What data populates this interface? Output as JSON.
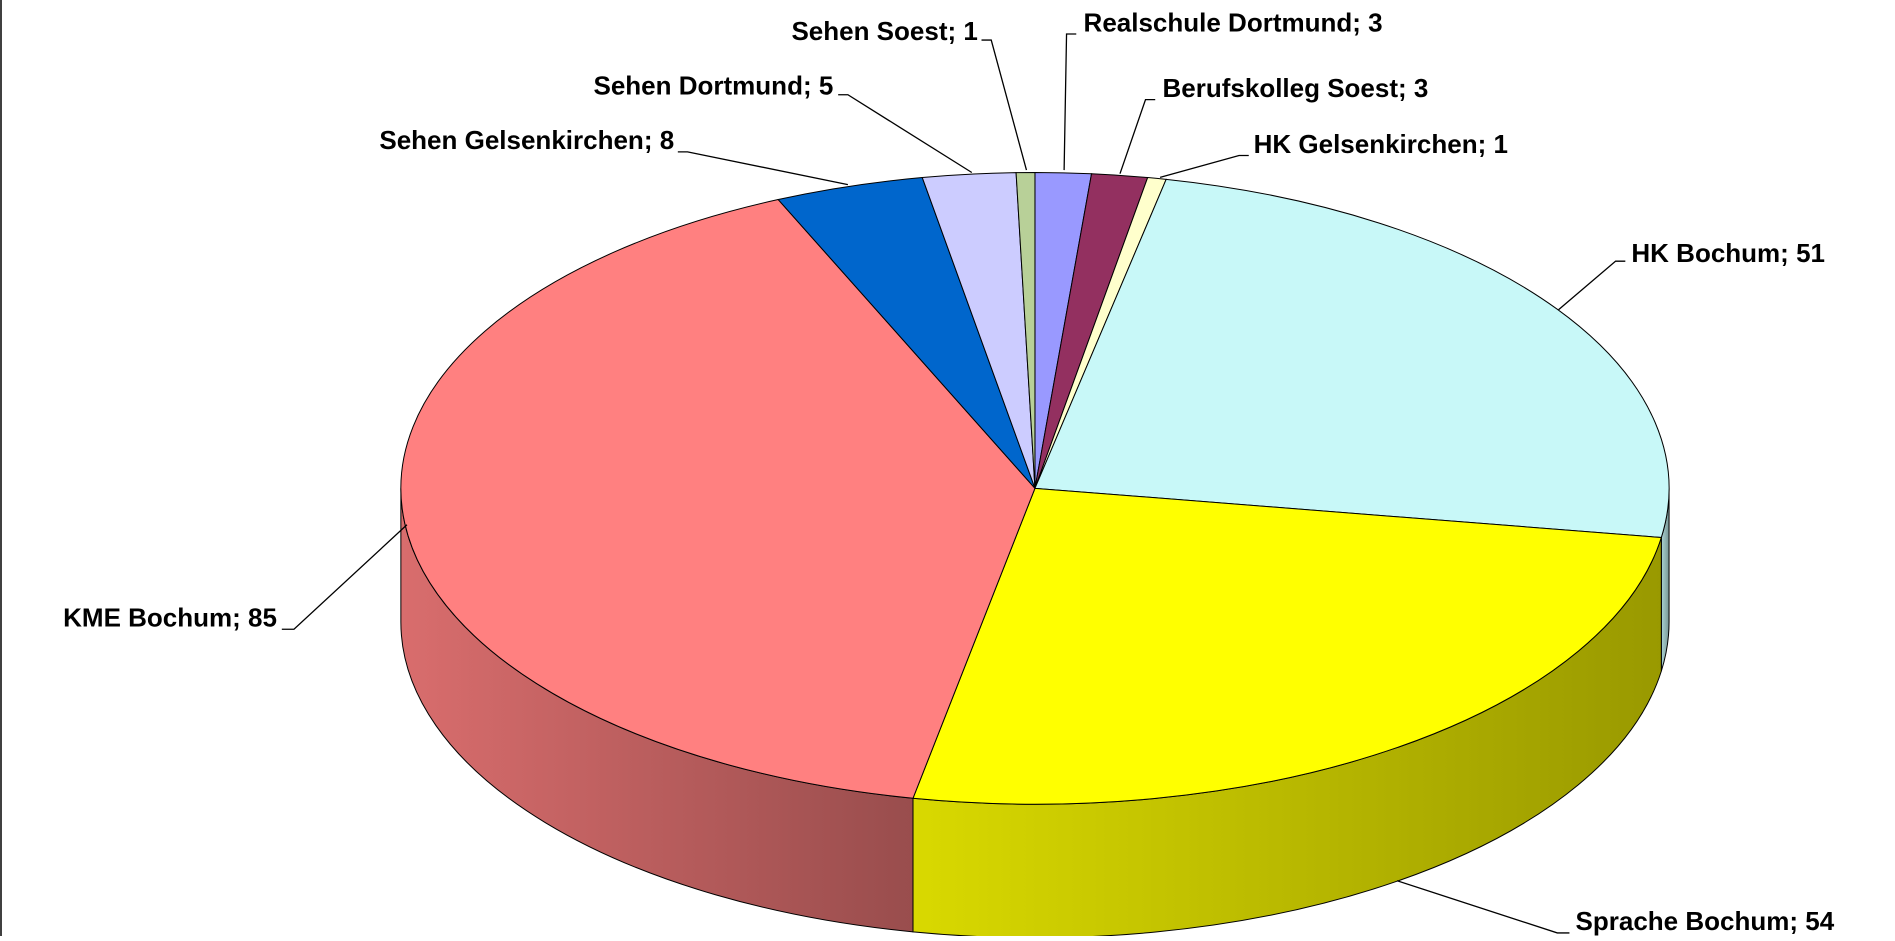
{
  "chart_data": {
    "type": "pie3d",
    "categories": [
      "Realschule Dortmund",
      "Berufskolleg Soest",
      "HK Gelsenkirchen",
      "HK Bochum",
      "Sprache Bochum",
      "KME Bochum",
      "Sehen Gelsenkirchen",
      "Sehen Dortmund",
      "Sehen Soest"
    ],
    "values": [
      3,
      3,
      1,
      51,
      54,
      85,
      8,
      5,
      1
    ],
    "colors": [
      "#9999ff",
      "#933060",
      "#ffffcc",
      "#c8f8f8",
      "#ffff00",
      "#ff8080",
      "#0066cc",
      "#ccccff",
      "#b8d098"
    ],
    "label_separator": "; "
  }
}
